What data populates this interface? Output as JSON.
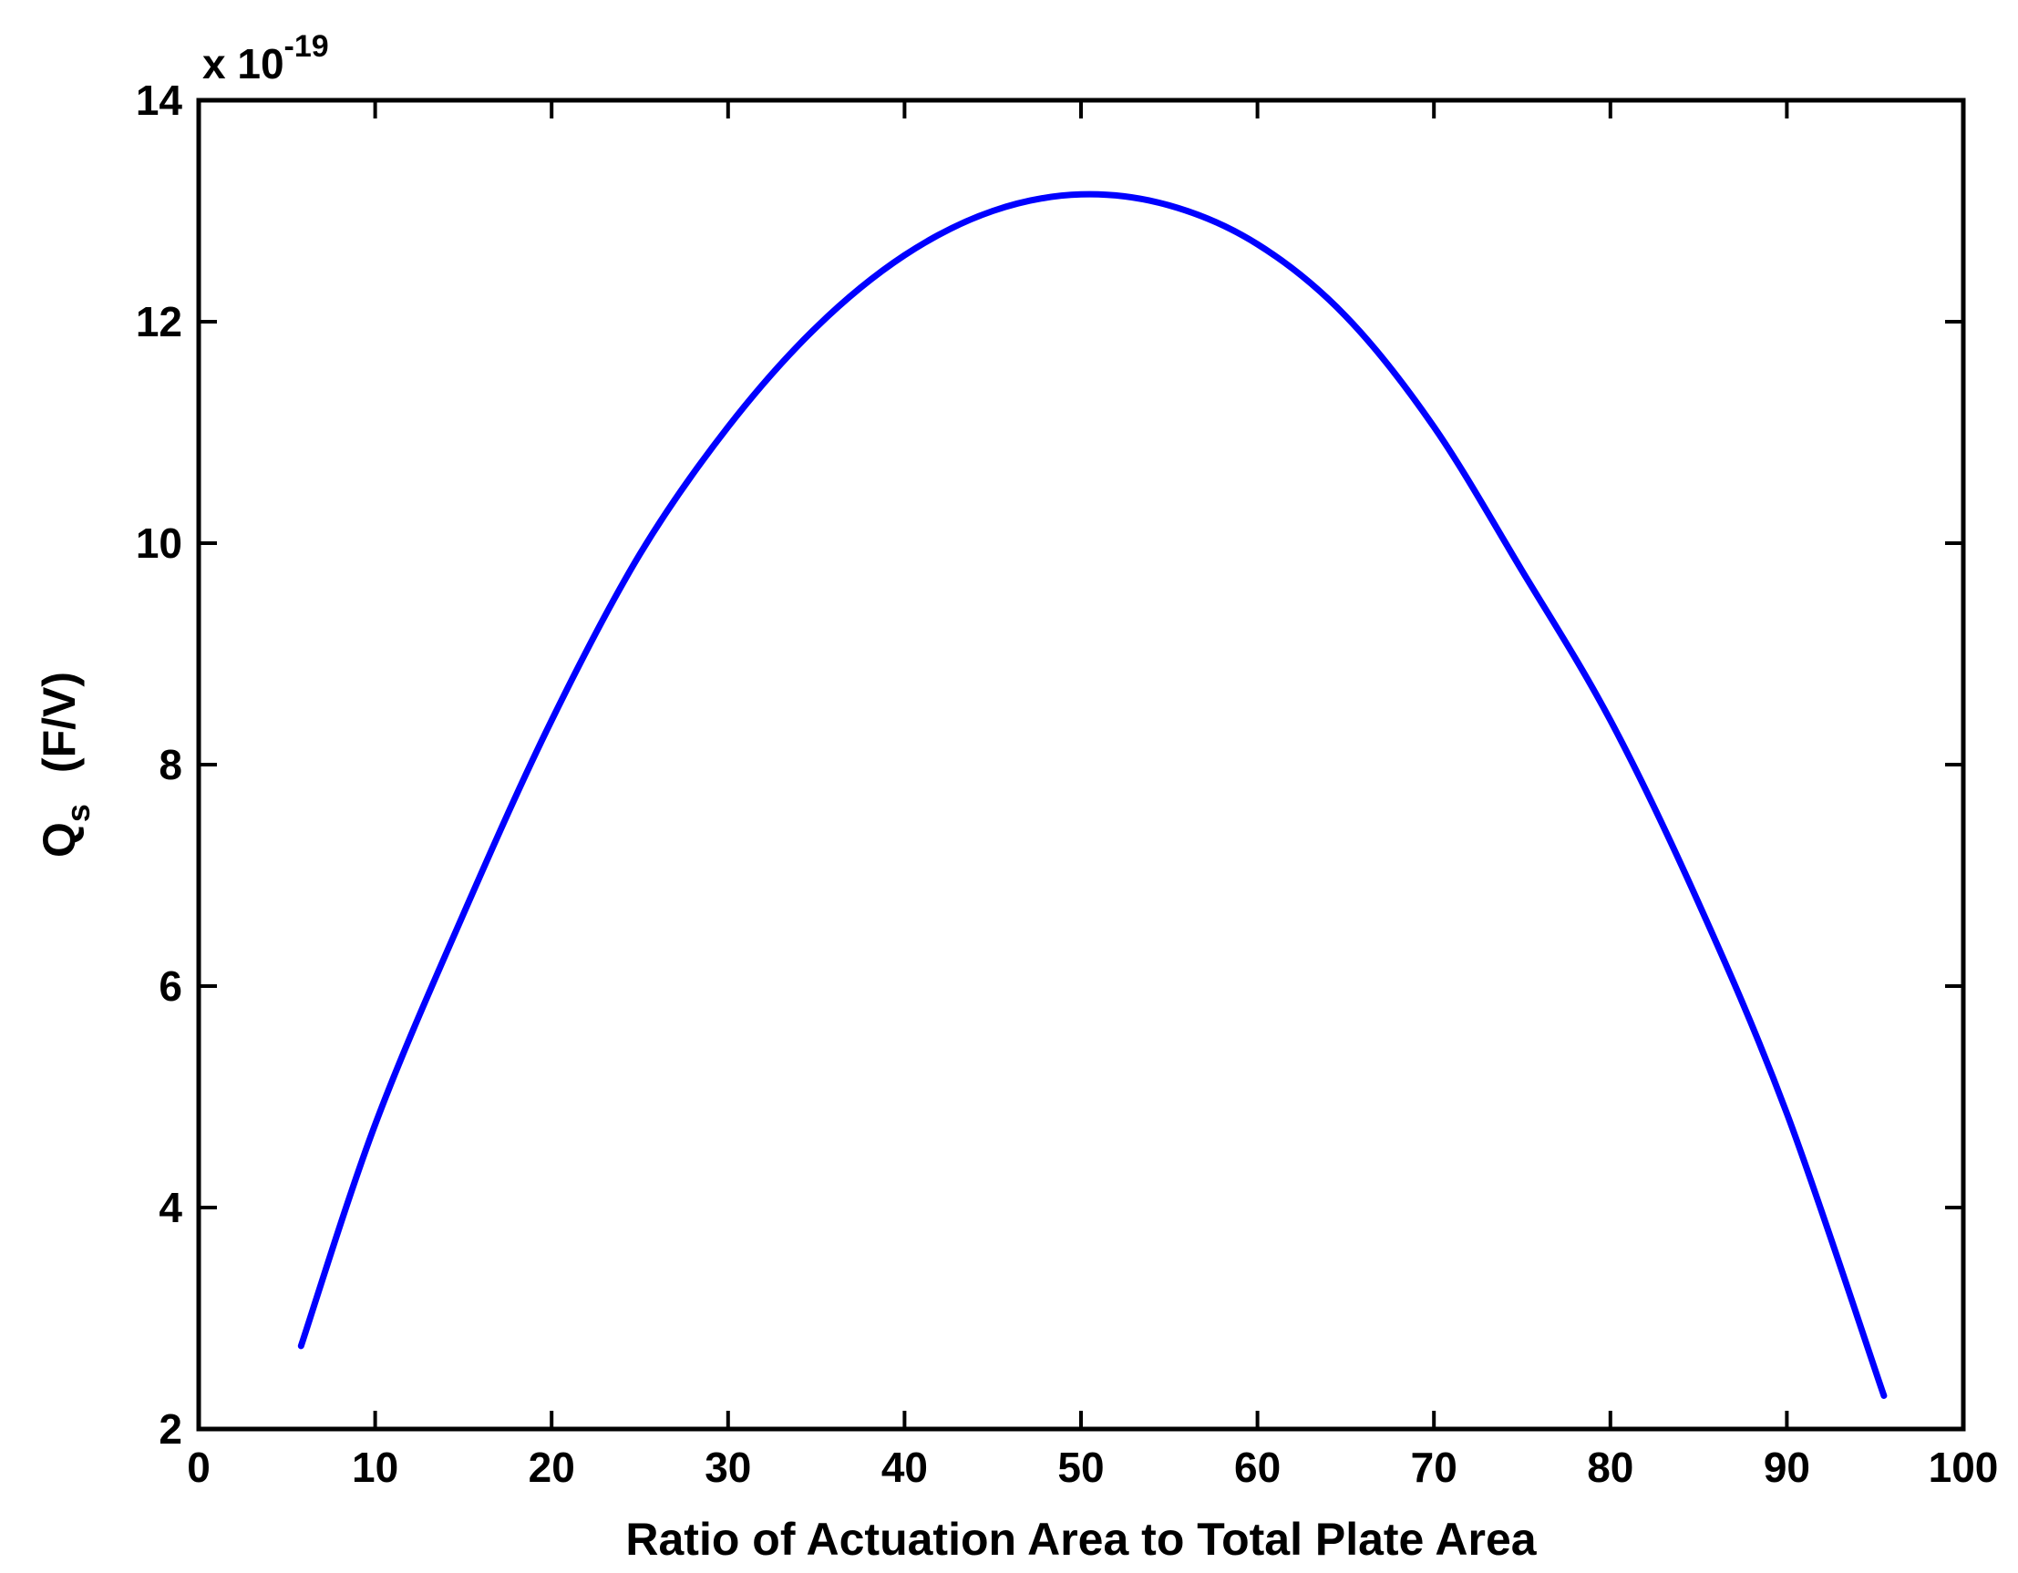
{
  "chart_data": {
    "type": "line",
    "title": "",
    "xlabel": "Ratio of Actuation Area to Total Plate Area",
    "ylabel_main": "Q",
    "ylabel_sub": "s",
    "ylabel_unit": "(F/V)",
    "y_multiplier_prefix": "x 10",
    "y_multiplier_exponent": "-19",
    "xlim": [
      0,
      100
    ],
    "ylim": [
      2,
      14
    ],
    "xticks": [
      0,
      10,
      20,
      30,
      40,
      50,
      60,
      70,
      80,
      90,
      100
    ],
    "yticks": [
      2,
      4,
      6,
      8,
      10,
      12,
      14
    ],
    "grid": false,
    "line_color": "#0000ff",
    "series": [
      {
        "x": [
          5.8,
          10,
          15,
          20,
          25,
          30,
          35,
          40,
          45,
          50,
          55,
          60,
          65,
          70,
          75,
          80,
          85,
          90,
          95.5
        ],
        "y": [
          2.75,
          4.75,
          6.65,
          8.4,
          9.9,
          11.05,
          11.95,
          12.6,
          13.0,
          13.15,
          13.05,
          12.7,
          12.05,
          11.05,
          9.75,
          8.4,
          6.75,
          4.85,
          2.3
        ]
      }
    ]
  }
}
